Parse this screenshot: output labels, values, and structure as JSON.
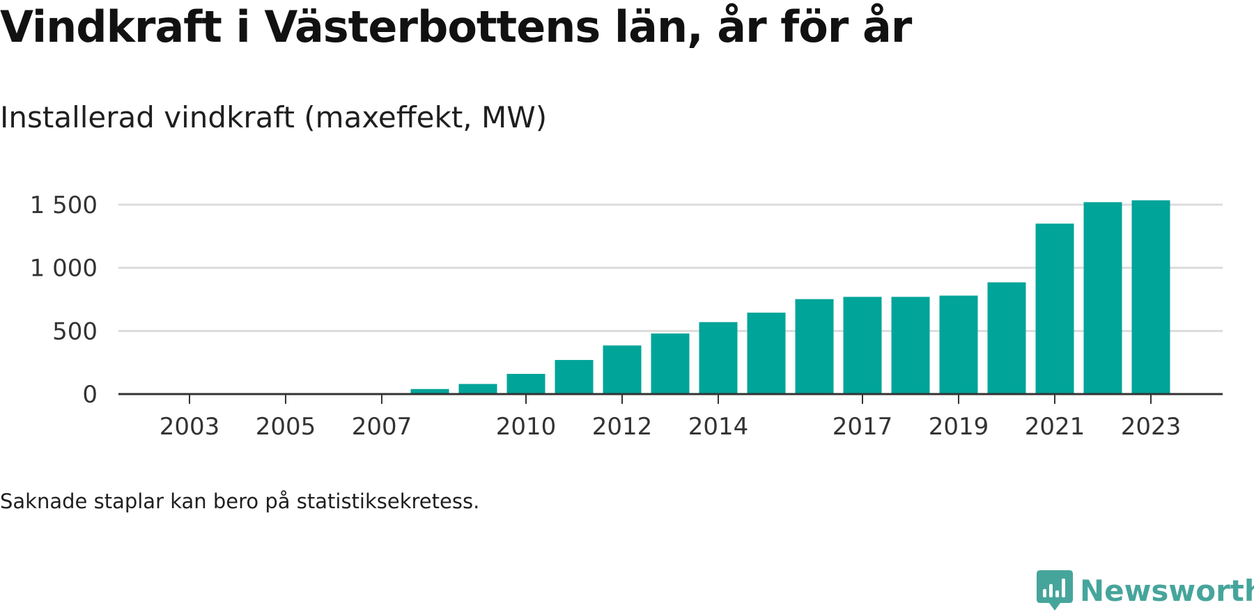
{
  "title": "Vindkraft i Västerbottens län, år för år",
  "subtitle": "Installerad vindkraft (maxeffekt, MW)",
  "footnote": "Saknade staplar kan bero på statistiksekretess.",
  "brand": {
    "name": "Newsworthy",
    "icon": "newsworthy-logo-icon",
    "color": "#46a59b"
  },
  "chart_data": {
    "type": "bar",
    "x_ticks": [
      "2003",
      "2005",
      "2007",
      "2010",
      "2012",
      "2014",
      "2017",
      "2019",
      "2021",
      "2023"
    ],
    "x": [
      "2002",
      "2003",
      "2004",
      "2005",
      "2006",
      "2007",
      "2008",
      "2009",
      "2010",
      "2011",
      "2012",
      "2013",
      "2014",
      "2015",
      "2016",
      "2017",
      "2018",
      "2019",
      "2020",
      "2021",
      "2022",
      "2023"
    ],
    "values": [
      0,
      0,
      0,
      0,
      0,
      0,
      40,
      80,
      160,
      270,
      385,
      480,
      570,
      645,
      752,
      770,
      770,
      780,
      885,
      1350,
      1520,
      1535
    ],
    "y_ticks": [
      0,
      500,
      1000,
      1500
    ],
    "y_tick_labels": [
      "0",
      "500",
      "1 000",
      "1 500"
    ],
    "ylim": [
      0,
      1500
    ],
    "grid": true,
    "bar_color": "#00a499",
    "grid_color": "#dcdcdc",
    "axis_color": "#333333"
  }
}
